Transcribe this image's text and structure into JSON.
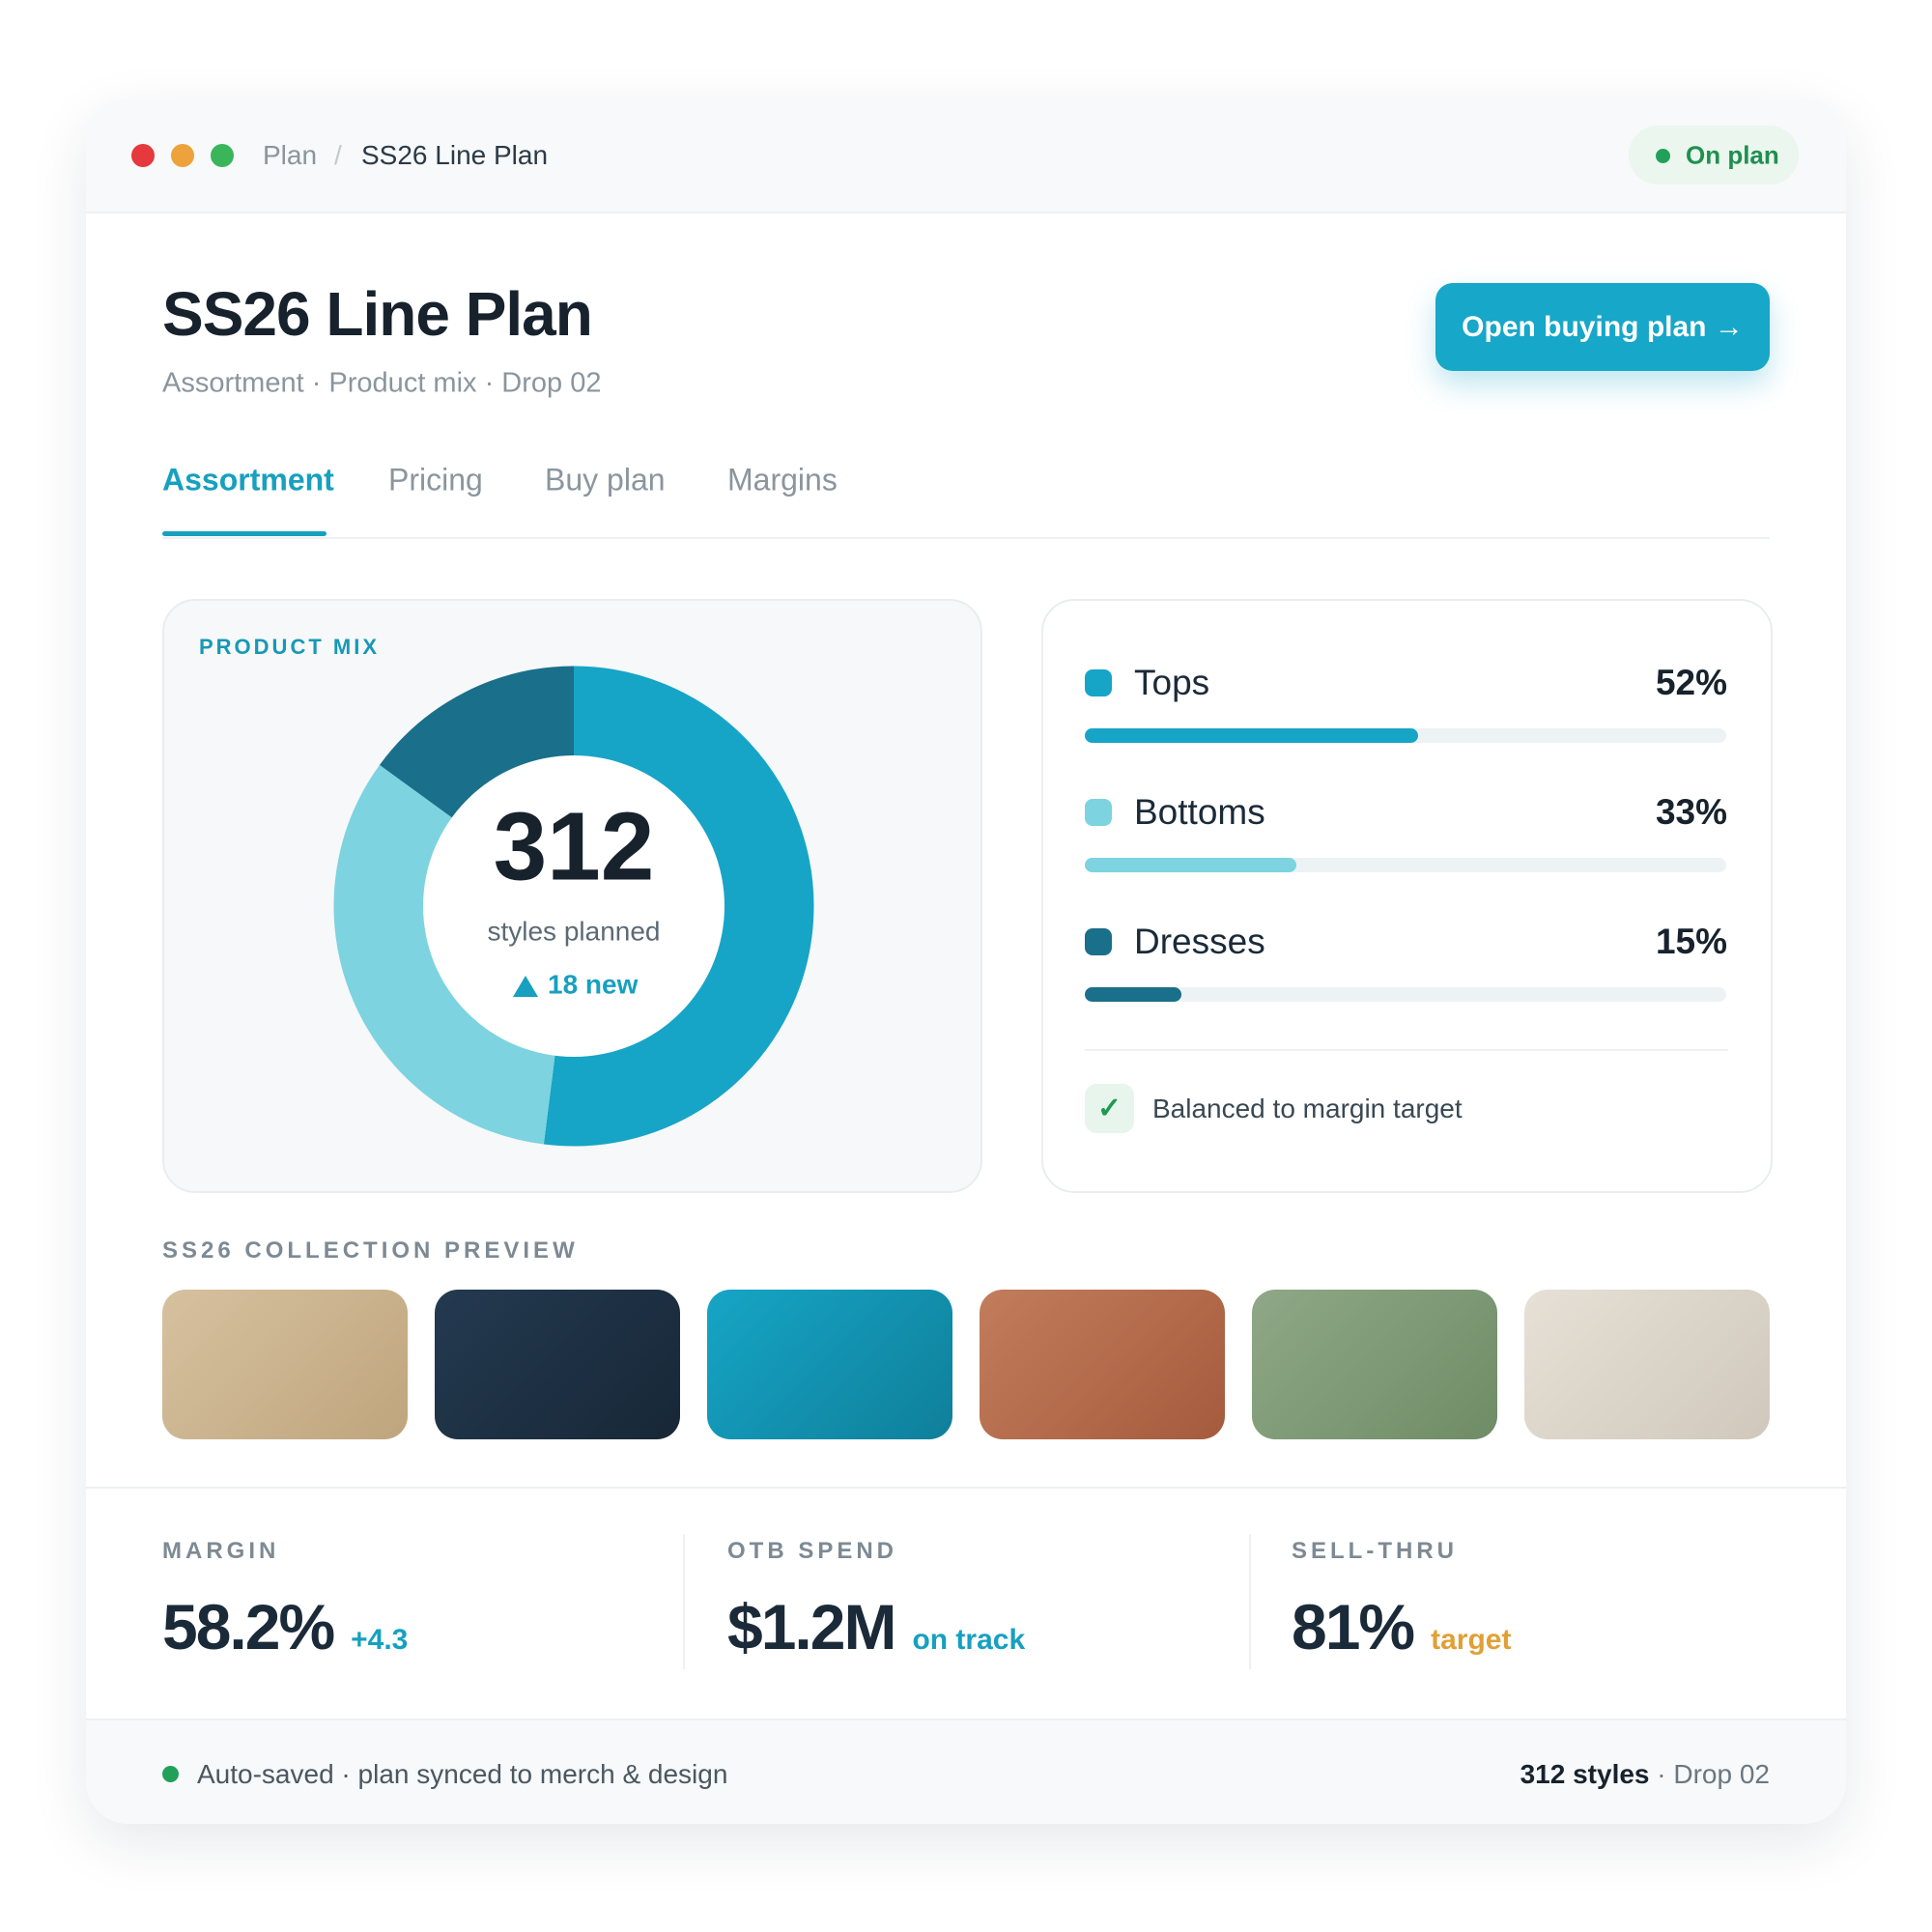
{
  "breadcrumb": [
    "Plan",
    "/",
    "SS26 Line Plan"
  ],
  "status": "On plan",
  "header": {
    "title": "SS26 Line Plan",
    "subtitle": "Assortment · Product mix · Drop 02",
    "button": "Open buying plan →"
  },
  "tabs": [
    "Assortment",
    "Pricing",
    "Buy plan",
    "Margins"
  ],
  "mix": {
    "type": "pie",
    "title": "PRODUCT MIX",
    "total": "312",
    "total_label": "styles planned",
    "change": "18 new",
    "categories": [
      "Tops",
      "Bottoms",
      "Dresses"
    ],
    "values": [
      52,
      33,
      15
    ],
    "value_labels": [
      "52%",
      "33%",
      "15%"
    ],
    "colors": [
      "#16a5c6",
      "#7dd3e0",
      "#1a6f8a"
    ],
    "note": "Balanced to margin target"
  },
  "preview": {
    "title": "SS26 COLLECTION PREVIEW"
  },
  "kpis": [
    {
      "label": "MARGIN",
      "value": "58.2%",
      "delta": "+4.3"
    },
    {
      "label": "OTB SPEND",
      "value": "$1.2M",
      "delta": "on track"
    },
    {
      "label": "SELL-THRU",
      "value": "81%",
      "delta": "target"
    }
  ],
  "footer": {
    "left": "Auto-saved · plan synced to merch & design",
    "right_strong": "312 styles",
    "right": "· Drop 02"
  }
}
